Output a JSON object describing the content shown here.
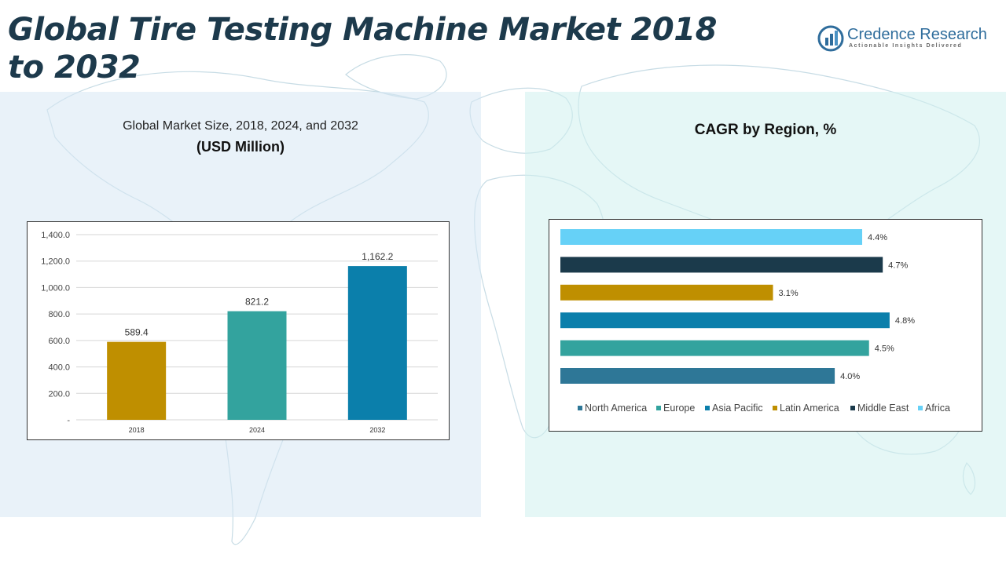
{
  "page": {
    "title": "Global Tire Testing Machine Market 2018 to 2032"
  },
  "logo": {
    "name": "Credence Research",
    "tagline": "Actionable Insights Delivered",
    "accent": "#2f6d9c"
  },
  "left_panel": {
    "subtitle": "Global Market Size, 2018, 2024, and 2032",
    "unit": "(USD Million)"
  },
  "right_panel": {
    "title": "CAGR by Region, %"
  },
  "chart_data": [
    {
      "type": "bar",
      "title": "Global Market Size, 2018, 2024, and 2032",
      "ylabel": "(USD Million)",
      "xlabel": "",
      "categories": [
        "2018",
        "2024",
        "2032"
      ],
      "values": [
        589.4,
        821.2,
        1162.2
      ],
      "data_labels": [
        "589.4",
        "821.2",
        "1,162.2"
      ],
      "colors": [
        "#bf8f00",
        "#33a39e",
        "#0b7fab"
      ],
      "ylim": [
        0,
        1400
      ],
      "yticks": [
        0,
        200,
        400,
        600,
        800,
        1000,
        1200,
        1400
      ],
      "ytick_labels": [
        "-",
        "200.0",
        "400.0",
        "600.0",
        "800.0",
        "1,000.0",
        "1,200.0",
        "1,400.0"
      ],
      "grid": true,
      "legend": "none"
    },
    {
      "type": "bar",
      "orientation": "horizontal",
      "title": "CAGR by Region, %",
      "categories": [
        "Africa",
        "Middle East",
        "Latin America",
        "Asia Pacific",
        "Europe",
        "North America"
      ],
      "values": [
        4.4,
        4.7,
        3.1,
        4.8,
        4.5,
        4.0
      ],
      "data_labels": [
        "4.4%",
        "4.7%",
        "3.1%",
        "4.8%",
        "4.5%",
        "4.0%"
      ],
      "colors": [
        "#66d1f7",
        "#1b3a4b",
        "#bf8f00",
        "#0b7fab",
        "#33a39e",
        "#2e7797"
      ],
      "xlim": [
        0,
        5.5
      ],
      "grid": false,
      "legend": "bottom",
      "legend_entries": [
        {
          "label": "North America",
          "color": "#2e7797"
        },
        {
          "label": "Europe",
          "color": "#33a39e"
        },
        {
          "label": "Asia Pacific",
          "color": "#0b7fab"
        },
        {
          "label": "Latin America",
          "color": "#bf8f00"
        },
        {
          "label": "Middle East",
          "color": "#1b3a4b"
        },
        {
          "label": "Africa",
          "color": "#66d1f7"
        }
      ]
    }
  ]
}
